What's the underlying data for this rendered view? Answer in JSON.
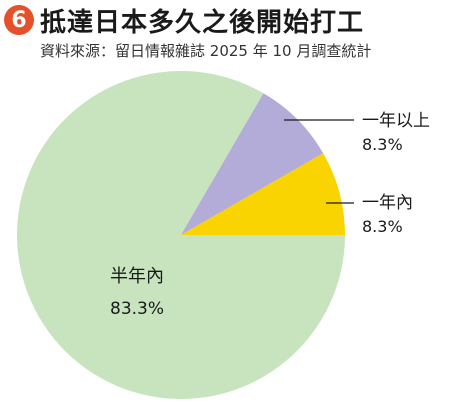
{
  "header": {
    "badge": "6",
    "title": "抵達日本多久之後開始打工",
    "source": "資料來源：留日情報雜誌 2025 年 10 月調查統計"
  },
  "chart_data": {
    "type": "pie",
    "slices": [
      {
        "label": "半年內",
        "value_label": "83.3%",
        "value": 83.3,
        "color": "#c8e4bf"
      },
      {
        "label": "一年以上",
        "value_label": "8.3%",
        "value": 8.3,
        "color": "#b3abd8"
      },
      {
        "label": "一年內",
        "value_label": "8.3%",
        "value": 8.3,
        "color": "#fad400"
      }
    ]
  }
}
